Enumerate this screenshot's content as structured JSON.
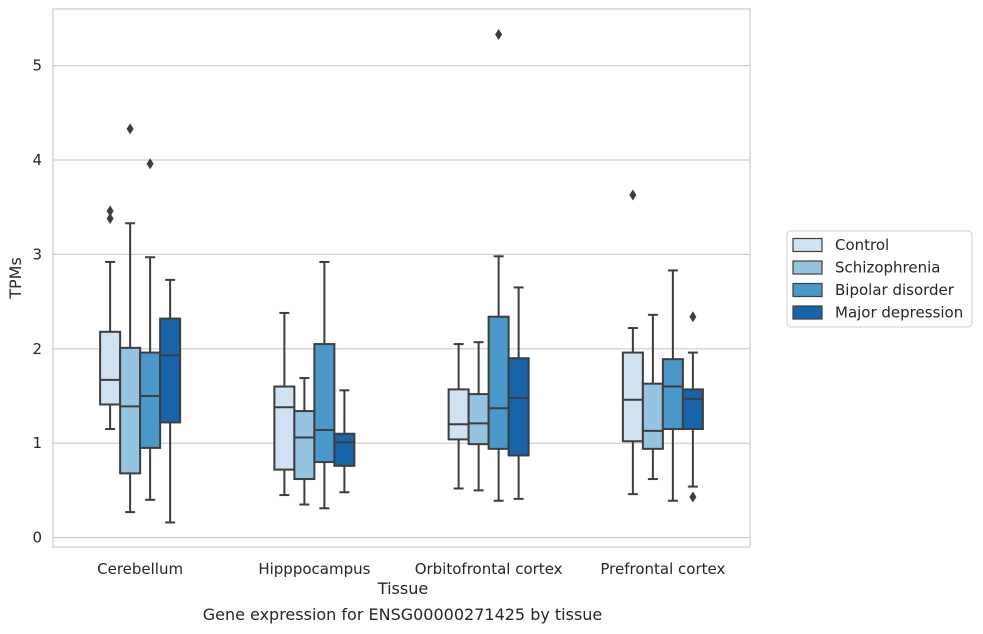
{
  "caption": "Gene expression for ENSG00000271425 by tissue",
  "chart_data": {
    "type": "box",
    "xlabel": "Tissue",
    "ylabel": "TPMs",
    "ylim": [
      -0.1,
      5.6
    ],
    "yticks": [
      0,
      1,
      2,
      3,
      4,
      5
    ],
    "grid": "horizontal",
    "legend_position": "right",
    "categories": [
      "Cerebellum",
      "Hipppocampus",
      "Orbitofrontal cortex",
      "Prefrontal cortex"
    ],
    "series": [
      {
        "name": "Control",
        "color": "#d0e1f2",
        "boxes": [
          {
            "whisker_low": 1.15,
            "q1": 1.41,
            "median": 1.67,
            "q3": 2.18,
            "whisker_high": 2.92,
            "outliers": [
              3.38,
              3.46
            ]
          },
          {
            "whisker_low": 0.45,
            "q1": 0.72,
            "median": 1.38,
            "q3": 1.6,
            "whisker_high": 2.38,
            "outliers": []
          },
          {
            "whisker_low": 0.52,
            "q1": 1.04,
            "median": 1.2,
            "q3": 1.57,
            "whisker_high": 2.05,
            "outliers": []
          },
          {
            "whisker_low": 0.46,
            "q1": 1.02,
            "median": 1.46,
            "q3": 1.96,
            "whisker_high": 2.22,
            "outliers": [
              3.63
            ]
          }
        ]
      },
      {
        "name": "Schizophrenia",
        "color": "#94c4df",
        "boxes": [
          {
            "whisker_low": 0.27,
            "q1": 0.68,
            "median": 1.39,
            "q3": 2.01,
            "whisker_high": 3.33,
            "outliers": [
              4.33
            ]
          },
          {
            "whisker_low": 0.35,
            "q1": 0.62,
            "median": 1.06,
            "q3": 1.34,
            "whisker_high": 1.69,
            "outliers": []
          },
          {
            "whisker_low": 0.5,
            "q1": 0.99,
            "median": 1.21,
            "q3": 1.52,
            "whisker_high": 2.07,
            "outliers": []
          },
          {
            "whisker_low": 0.62,
            "q1": 0.94,
            "median": 1.13,
            "q3": 1.63,
            "whisker_high": 2.36,
            "outliers": []
          }
        ]
      },
      {
        "name": "Bipolar disorder",
        "color": "#4a98c9",
        "boxes": [
          {
            "whisker_low": 0.4,
            "q1": 0.95,
            "median": 1.5,
            "q3": 1.96,
            "whisker_high": 2.97,
            "outliers": [
              3.96
            ]
          },
          {
            "whisker_low": 0.31,
            "q1": 0.8,
            "median": 1.14,
            "q3": 2.05,
            "whisker_high": 2.92,
            "outliers": []
          },
          {
            "whisker_low": 0.39,
            "q1": 0.94,
            "median": 1.37,
            "q3": 2.34,
            "whisker_high": 2.98,
            "outliers": [
              5.33
            ]
          },
          {
            "whisker_low": 0.39,
            "q1": 1.15,
            "median": 1.6,
            "q3": 1.89,
            "whisker_high": 2.83,
            "outliers": []
          }
        ]
      },
      {
        "name": "Major depression",
        "color": "#1764ab",
        "boxes": [
          {
            "whisker_low": 0.16,
            "q1": 1.22,
            "median": 1.93,
            "q3": 2.32,
            "whisker_high": 2.73,
            "outliers": []
          },
          {
            "whisker_low": 0.48,
            "q1": 0.76,
            "median": 1.01,
            "q3": 1.1,
            "whisker_high": 1.56,
            "outliers": []
          },
          {
            "whisker_low": 0.41,
            "q1": 0.87,
            "median": 1.48,
            "q3": 1.9,
            "whisker_high": 2.65,
            "outliers": []
          },
          {
            "whisker_low": 0.54,
            "q1": 1.15,
            "median": 1.47,
            "q3": 1.57,
            "whisker_high": 1.96,
            "outliers": [
              0.43,
              2.34
            ]
          }
        ]
      }
    ]
  }
}
